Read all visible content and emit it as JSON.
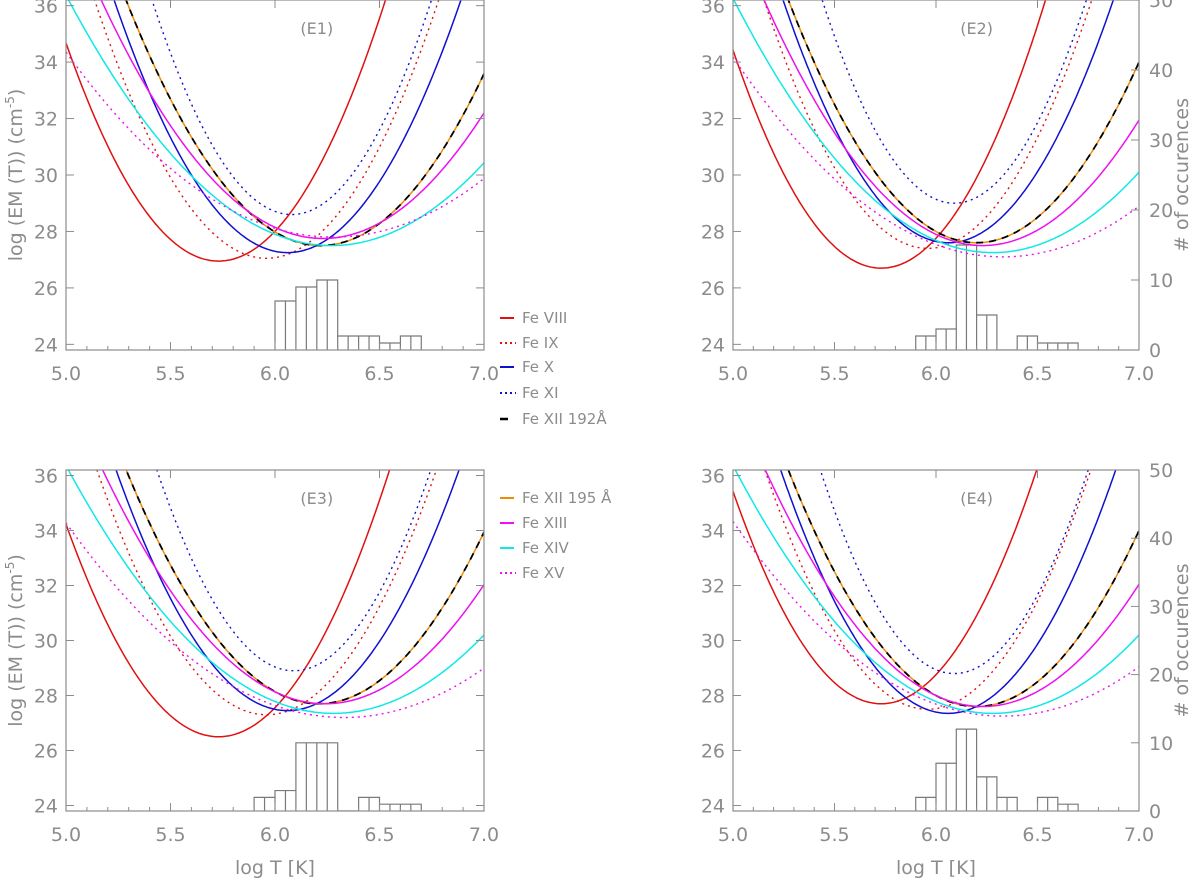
{
  "figure": {
    "xlabel": "log T [K]",
    "ylabel": "log (EM (T)) (cm",
    "ylabel_sup": "-5",
    "ylabel_close": ")",
    "y2label": "# of occurences"
  },
  "legend": [
    {
      "label": "Fe VIII",
      "color": "#e01010",
      "dash": "solid"
    },
    {
      "label": "Fe IX",
      "color": "#e01010",
      "dash": "dotted"
    },
    {
      "label": "Fe X",
      "color": "#1010d0",
      "dash": "solid"
    },
    {
      "label": "Fe XI",
      "color": "#1010d0",
      "dash": "dotted"
    },
    {
      "label": "Fe XII 192Å",
      "color": "#000000",
      "dash": "dashed"
    },
    {
      "label": "Fe XII 195 Å",
      "color": "#f08a00",
      "dash": "solid"
    },
    {
      "label": "Fe XIII",
      "color": "#ee10ee",
      "dash": "solid"
    },
    {
      "label": "Fe XIV",
      "color": "#10e8e8",
      "dash": "solid"
    },
    {
      "label": "Fe XV",
      "color": "#ee10ee",
      "dash": "dotted"
    }
  ],
  "chart_data": [
    {
      "type": "line",
      "title": "(E1)",
      "xlim": [
        5.0,
        7.0
      ],
      "ylim": [
        23.8,
        36.2
      ],
      "y2lim": [
        0,
        50
      ],
      "xticks": [
        "5.0",
        "5.5",
        "6.0",
        "6.5",
        "7.0"
      ],
      "yticks": [
        "24",
        "26",
        "28",
        "30",
        "32",
        "34",
        "36"
      ],
      "y2ticks": [],
      "series": [
        {
          "name": "Fe VIII",
          "minx": 5.73,
          "miny": 26.95,
          "k": 14.5
        },
        {
          "name": "Fe IX",
          "minx": 5.96,
          "miny": 27.05,
          "k": 13.5
        },
        {
          "name": "Fe X",
          "minx": 6.06,
          "miny": 27.25,
          "k": 13.0
        },
        {
          "name": "Fe XI",
          "minx": 6.08,
          "miny": 28.6,
          "k": 17.0
        },
        {
          "name": "Fe XII 195 Å",
          "minx": 6.22,
          "miny": 27.5,
          "k": 10.0
        },
        {
          "name": "Fe XII 192Å",
          "minx": 6.22,
          "miny": 27.5,
          "k": 10.0
        },
        {
          "name": "Fe XIII",
          "minx": 6.23,
          "miny": 27.75,
          "k": 7.5
        },
        {
          "name": "Fe XIV",
          "minx": 6.27,
          "miny": 27.5,
          "k": 5.5
        },
        {
          "name": "Fe XV",
          "minx": 6.28,
          "miny": 27.8,
          "k": 4.0
        }
      ],
      "histogram": {
        "edges": [
          6.0,
          6.05,
          6.1,
          6.15,
          6.2,
          6.25,
          6.3,
          6.35,
          6.4,
          6.45,
          6.5,
          6.55,
          6.6,
          6.65,
          6.7
        ],
        "counts": [
          7,
          7,
          9,
          9,
          10,
          10,
          2,
          2,
          2,
          2,
          1,
          1,
          2,
          2
        ]
      }
    },
    {
      "type": "line",
      "title": "(E2)",
      "xlim": [
        5.0,
        7.0
      ],
      "ylim": [
        23.8,
        36.2
      ],
      "y2lim": [
        0,
        50
      ],
      "xticks": [
        "5.0",
        "5.5",
        "6.0",
        "6.5",
        "7.0"
      ],
      "yticks": [
        "24",
        "26",
        "28",
        "30",
        "32",
        "34",
        "36"
      ],
      "y2ticks": [
        "0",
        "10",
        "20",
        "30",
        "40",
        "50"
      ],
      "series": [
        {
          "name": "Fe VIII",
          "minx": 5.73,
          "miny": 26.7,
          "k": 14.5
        },
        {
          "name": "Fe IX",
          "minx": 5.96,
          "miny": 27.4,
          "k": 13.5
        },
        {
          "name": "Fe X",
          "minx": 6.06,
          "miny": 27.6,
          "k": 13.0
        },
        {
          "name": "Fe XI",
          "minx": 6.09,
          "miny": 29.0,
          "k": 17.0
        },
        {
          "name": "Fe XII 195 Å",
          "minx": 6.2,
          "miny": 27.6,
          "k": 10.0
        },
        {
          "name": "Fe XII 192Å",
          "minx": 6.2,
          "miny": 27.6,
          "k": 10.0
        },
        {
          "name": "Fe XIII",
          "minx": 6.23,
          "miny": 27.5,
          "k": 7.5
        },
        {
          "name": "Fe XIV",
          "minx": 6.28,
          "miny": 27.25,
          "k": 5.5
        },
        {
          "name": "Fe XV",
          "minx": 6.33,
          "miny": 27.1,
          "k": 4.0
        }
      ],
      "histogram": {
        "edges": [
          5.9,
          5.95,
          6.0,
          6.05,
          6.1,
          6.15,
          6.2,
          6.25,
          6.3,
          6.35,
          6.4,
          6.45,
          6.5,
          6.55,
          6.6,
          6.65,
          6.7
        ],
        "counts": [
          2,
          2,
          3,
          3,
          15,
          15,
          5,
          5,
          0,
          0,
          2,
          2,
          1,
          1,
          1,
          1
        ]
      }
    },
    {
      "type": "line",
      "title": "(E3)",
      "xlim": [
        5.0,
        7.0
      ],
      "ylim": [
        23.8,
        36.2
      ],
      "y2lim": [
        0,
        50
      ],
      "xticks": [
        "5.0",
        "5.5",
        "6.0",
        "6.5",
        "7.0"
      ],
      "yticks": [
        "24",
        "26",
        "28",
        "30",
        "32",
        "34",
        "36"
      ],
      "y2ticks": [],
      "series": [
        {
          "name": "Fe VIII",
          "minx": 5.73,
          "miny": 26.5,
          "k": 14.5
        },
        {
          "name": "Fe IX",
          "minx": 5.96,
          "miny": 27.3,
          "k": 13.5
        },
        {
          "name": "Fe X",
          "minx": 6.06,
          "miny": 27.45,
          "k": 13.0
        },
        {
          "name": "Fe XI",
          "minx": 6.09,
          "miny": 28.9,
          "k": 17.0
        },
        {
          "name": "Fe XII 195 Å",
          "minx": 6.21,
          "miny": 27.7,
          "k": 10.0
        },
        {
          "name": "Fe XII 192Å",
          "minx": 6.21,
          "miny": 27.7,
          "k": 10.0
        },
        {
          "name": "Fe XIII",
          "minx": 6.24,
          "miny": 27.7,
          "k": 7.5
        },
        {
          "name": "Fe XIV",
          "minx": 6.28,
          "miny": 27.35,
          "k": 5.5
        },
        {
          "name": "Fe XV",
          "minx": 6.33,
          "miny": 27.2,
          "k": 4.0
        }
      ],
      "histogram": {
        "edges": [
          5.9,
          5.95,
          6.0,
          6.05,
          6.1,
          6.15,
          6.2,
          6.25,
          6.3,
          6.35,
          6.4,
          6.45,
          6.5,
          6.55,
          6.6,
          6.65,
          6.7
        ],
        "counts": [
          2,
          2,
          3,
          3,
          10,
          10,
          10,
          10,
          0,
          0,
          2,
          2,
          1,
          1,
          1,
          1
        ]
      }
    },
    {
      "type": "line",
      "title": "(E4)",
      "xlim": [
        5.0,
        7.0
      ],
      "ylim": [
        23.8,
        36.2
      ],
      "y2lim": [
        0,
        50
      ],
      "xticks": [
        "5.0",
        "5.5",
        "6.0",
        "6.5",
        "7.0"
      ],
      "yticks": [
        "24",
        "26",
        "28",
        "30",
        "32",
        "34",
        "36"
      ],
      "y2ticks": [
        "0",
        "10",
        "20",
        "30",
        "40",
        "50"
      ],
      "series": [
        {
          "name": "Fe VIII",
          "minx": 5.73,
          "miny": 27.7,
          "k": 14.5
        },
        {
          "name": "Fe IX",
          "minx": 5.96,
          "miny": 27.5,
          "k": 13.5
        },
        {
          "name": "Fe X",
          "minx": 6.06,
          "miny": 27.35,
          "k": 13.0
        },
        {
          "name": "Fe XI",
          "minx": 6.09,
          "miny": 28.8,
          "k": 17.0
        },
        {
          "name": "Fe XII 195 Å",
          "minx": 6.2,
          "miny": 27.6,
          "k": 10.0
        },
        {
          "name": "Fe XII 192Å",
          "minx": 6.2,
          "miny": 27.6,
          "k": 10.0
        },
        {
          "name": "Fe XIII",
          "minx": 6.23,
          "miny": 27.6,
          "k": 7.5
        },
        {
          "name": "Fe XIV",
          "minx": 6.28,
          "miny": 27.35,
          "k": 5.5
        },
        {
          "name": "Fe XV",
          "minx": 6.33,
          "miny": 27.25,
          "k": 4.0
        }
      ],
      "histogram": {
        "edges": [
          5.9,
          5.95,
          6.0,
          6.05,
          6.1,
          6.15,
          6.2,
          6.25,
          6.3,
          6.35,
          6.4,
          6.45,
          6.5,
          6.55,
          6.6,
          6.65,
          6.7
        ],
        "counts": [
          2,
          2,
          7,
          7,
          12,
          12,
          5,
          5,
          2,
          2,
          0,
          0,
          2,
          2,
          1,
          1
        ]
      }
    }
  ]
}
